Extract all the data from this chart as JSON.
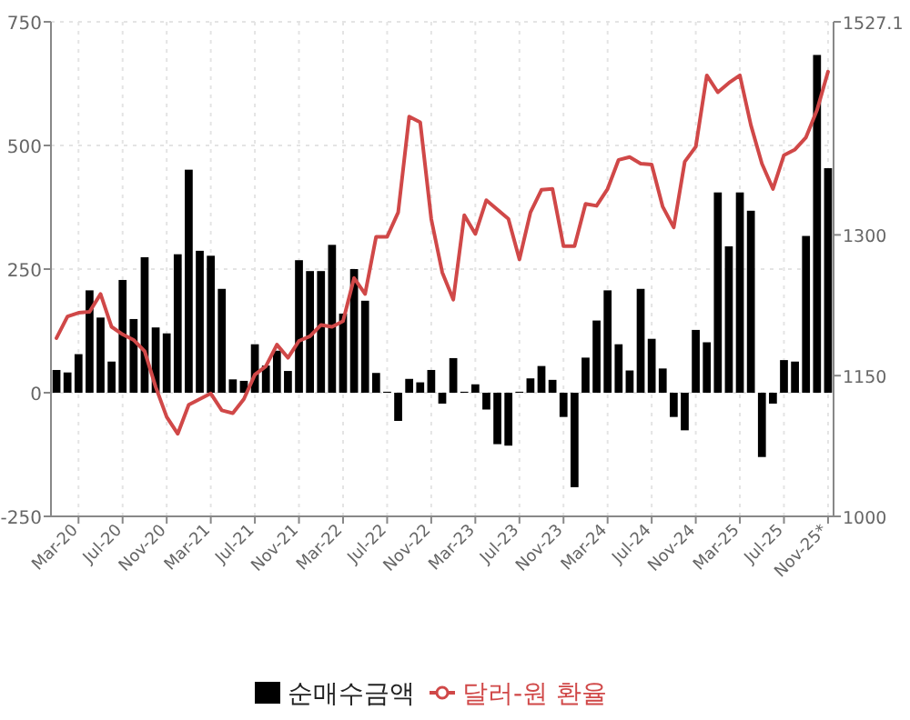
{
  "chart_data": {
    "type": "bar",
    "categories": [
      null,
      null,
      "Mar-20",
      null,
      null,
      null,
      "Jul-20",
      null,
      null,
      null,
      "Nov-20",
      null,
      null,
      null,
      "Mar-21",
      null,
      null,
      null,
      "Jul-21",
      null,
      null,
      null,
      "Nov-21",
      null,
      null,
      null,
      "Mar-22",
      null,
      null,
      null,
      "Jul-22",
      null,
      null,
      null,
      "Nov-22",
      null,
      null,
      null,
      "Mar-23",
      null,
      null,
      null,
      "Jul-23",
      null,
      null,
      null,
      "Nov-23",
      null,
      null,
      null,
      "Mar-24",
      null,
      null,
      null,
      "Jul-24",
      null,
      null,
      null,
      "Nov-24",
      null,
      null,
      null,
      "Mar-25",
      null,
      null,
      null,
      "Jul-25",
      null,
      null,
      null,
      "Nov-25*"
    ],
    "series": [
      {
        "name": "순매수금액",
        "color": "#000000",
        "values": [
          46,
          41,
          78,
          207,
          152,
          63,
          228,
          149,
          274,
          132,
          120,
          280,
          451,
          287,
          277,
          210,
          27,
          24,
          98,
          55,
          85,
          44,
          268,
          246,
          246,
          299,
          160,
          250,
          186,
          40,
          2,
          -57,
          28,
          21,
          46,
          -22,
          70,
          2,
          17,
          -34,
          -104,
          -107,
          2,
          29,
          54,
          26,
          -49,
          -191,
          71,
          146,
          207,
          98,
          45,
          210,
          109,
          49,
          -49,
          -76,
          127,
          102,
          405,
          296,
          405,
          368,
          -130,
          -22,
          66,
          63,
          317,
          683,
          454
        ]
      },
      {
        "name": "달러-원 환율",
        "type": "line",
        "axis": "y2",
        "color": "#d04848",
        "values": [
          1190,
          1213,
          1217,
          1218,
          1237,
          1202,
          1194,
          1188,
          1176,
          1138,
          1106,
          1088,
          1119,
          1125,
          1131,
          1113,
          1110,
          1125,
          1151,
          1160,
          1183,
          1169,
          1187,
          1192,
          1204,
          1202,
          1208,
          1254,
          1237,
          1298,
          1298,
          1324,
          1426,
          1420,
          1317,
          1260,
          1231,
          1321,
          1301,
          1337,
          1327,
          1317,
          1274,
          1324,
          1348,
          1349,
          1288,
          1288,
          1333,
          1331,
          1349,
          1380,
          1383,
          1376,
          1375,
          1330,
          1308,
          1378,
          1394,
          1470,
          1452,
          1462,
          1470,
          1417,
          1376,
          1349,
          1385,
          1391,
          1404,
          1433,
          1474
        ]
      }
    ],
    "ylim": [
      -250,
      750
    ],
    "yticks": [
      -250,
      0,
      250,
      500,
      750
    ],
    "y2lim": [
      1000,
      1527.1
    ],
    "y2ticks": [
      1000,
      1150,
      1300,
      1527.1
    ],
    "grid": true,
    "legend": "bottom"
  }
}
